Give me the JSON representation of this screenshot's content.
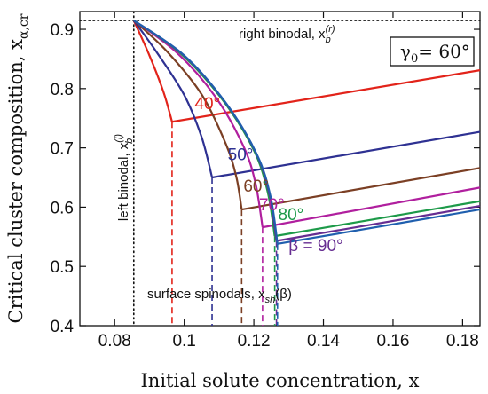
{
  "chart_data": {
    "type": "line",
    "xlabel": "Initial solute concentration, x",
    "ylabel": "Critical cluster composition, x",
    "ylabel_sub": "α,cr",
    "xlim": [
      0.07,
      0.185
    ],
    "ylim": [
      0.4,
      0.93
    ],
    "x_ticks": [
      0.08,
      0.1,
      0.12,
      0.14,
      0.16,
      0.18
    ],
    "x_tick_labels": [
      "0.08",
      "0.1",
      "0.12",
      "0.14",
      "0.16",
      "0.18"
    ],
    "y_ticks": [
      0.4,
      0.5,
      0.6,
      0.7,
      0.8,
      0.9
    ],
    "y_tick_labels": [
      "0.4",
      "0.5",
      "0.6",
      "0.7",
      "0.8",
      "0.9"
    ],
    "grid": false,
    "apex": {
      "x": 0.0855,
      "y": 0.915
    },
    "left_binodal": {
      "x": 0.0855,
      "label": "left binodal, x",
      "sub": "b",
      "sup": "(l)"
    },
    "right_binodal": {
      "y": 0.915,
      "label": "right binodal, x",
      "sub": "b",
      "sup": "(r)"
    },
    "gamma_box": {
      "label": "γ",
      "sub": "0",
      "value": "= 60°"
    },
    "spinodal_label": {
      "text": "surface spinodals, x",
      "sub": "sh",
      "arg": "(β)"
    },
    "series": [
      {
        "name": "40°",
        "color": "#e2231a",
        "x_sp": 0.0965,
        "y_sp": 0.744,
        "y_end": 0.831,
        "upper": [
          [
            0.0855,
            0.915
          ],
          [
            0.09,
            0.856
          ],
          [
            0.094,
            0.795
          ],
          [
            0.0965,
            0.744
          ]
        ]
      },
      {
        "name": "50°",
        "color": "#2e3192",
        "x_sp": 0.108,
        "y_sp": 0.65,
        "y_end": 0.727,
        "upper": [
          [
            0.0855,
            0.915
          ],
          [
            0.092,
            0.862
          ],
          [
            0.1,
            0.789
          ],
          [
            0.105,
            0.718
          ],
          [
            0.108,
            0.65
          ]
        ]
      },
      {
        "name": "60°",
        "color": "#7b3f24",
        "x_sp": 0.1165,
        "y_sp": 0.596,
        "y_end": 0.666,
        "upper": [
          [
            0.0855,
            0.915
          ],
          [
            0.095,
            0.863
          ],
          [
            0.105,
            0.79
          ],
          [
            0.112,
            0.706
          ],
          [
            0.115,
            0.65
          ],
          [
            0.1165,
            0.596
          ]
        ]
      },
      {
        "name": "70°",
        "color": "#b01f9e",
        "x_sp": 0.1225,
        "y_sp": 0.566,
        "y_end": 0.633,
        "upper": [
          [
            0.0855,
            0.915
          ],
          [
            0.098,
            0.86
          ],
          [
            0.109,
            0.786
          ],
          [
            0.117,
            0.703
          ],
          [
            0.1205,
            0.64
          ],
          [
            0.1225,
            0.566
          ]
        ]
      },
      {
        "name": "80°",
        "color": "#1d9a49",
        "x_sp": 0.126,
        "y_sp": 0.551,
        "y_end": 0.61,
        "upper": [
          [
            0.0855,
            0.915
          ],
          [
            0.099,
            0.859
          ],
          [
            0.111,
            0.781
          ],
          [
            0.12,
            0.696
          ],
          [
            0.124,
            0.625
          ],
          [
            0.126,
            0.551
          ]
        ]
      },
      {
        "name": "β = 90°",
        "color": "#662d91",
        "x_sp": 0.1265,
        "y_sp": 0.543,
        "y_end": 0.602,
        "upper": [
          [
            0.0855,
            0.915
          ],
          [
            0.0995,
            0.858
          ],
          [
            0.1115,
            0.779
          ],
          [
            0.1205,
            0.693
          ],
          [
            0.1245,
            0.621
          ],
          [
            0.1265,
            0.543
          ]
        ]
      },
      {
        "name": "",
        "color": "#1f5fae",
        "x_sp": 0.1268,
        "y_sp": 0.538,
        "y_end": 0.596,
        "upper": [
          [
            0.0855,
            0.915
          ],
          [
            0.0998,
            0.857
          ],
          [
            0.1118,
            0.777
          ],
          [
            0.1208,
            0.69
          ],
          [
            0.1248,
            0.618
          ],
          [
            0.1268,
            0.538
          ]
        ]
      }
    ]
  }
}
